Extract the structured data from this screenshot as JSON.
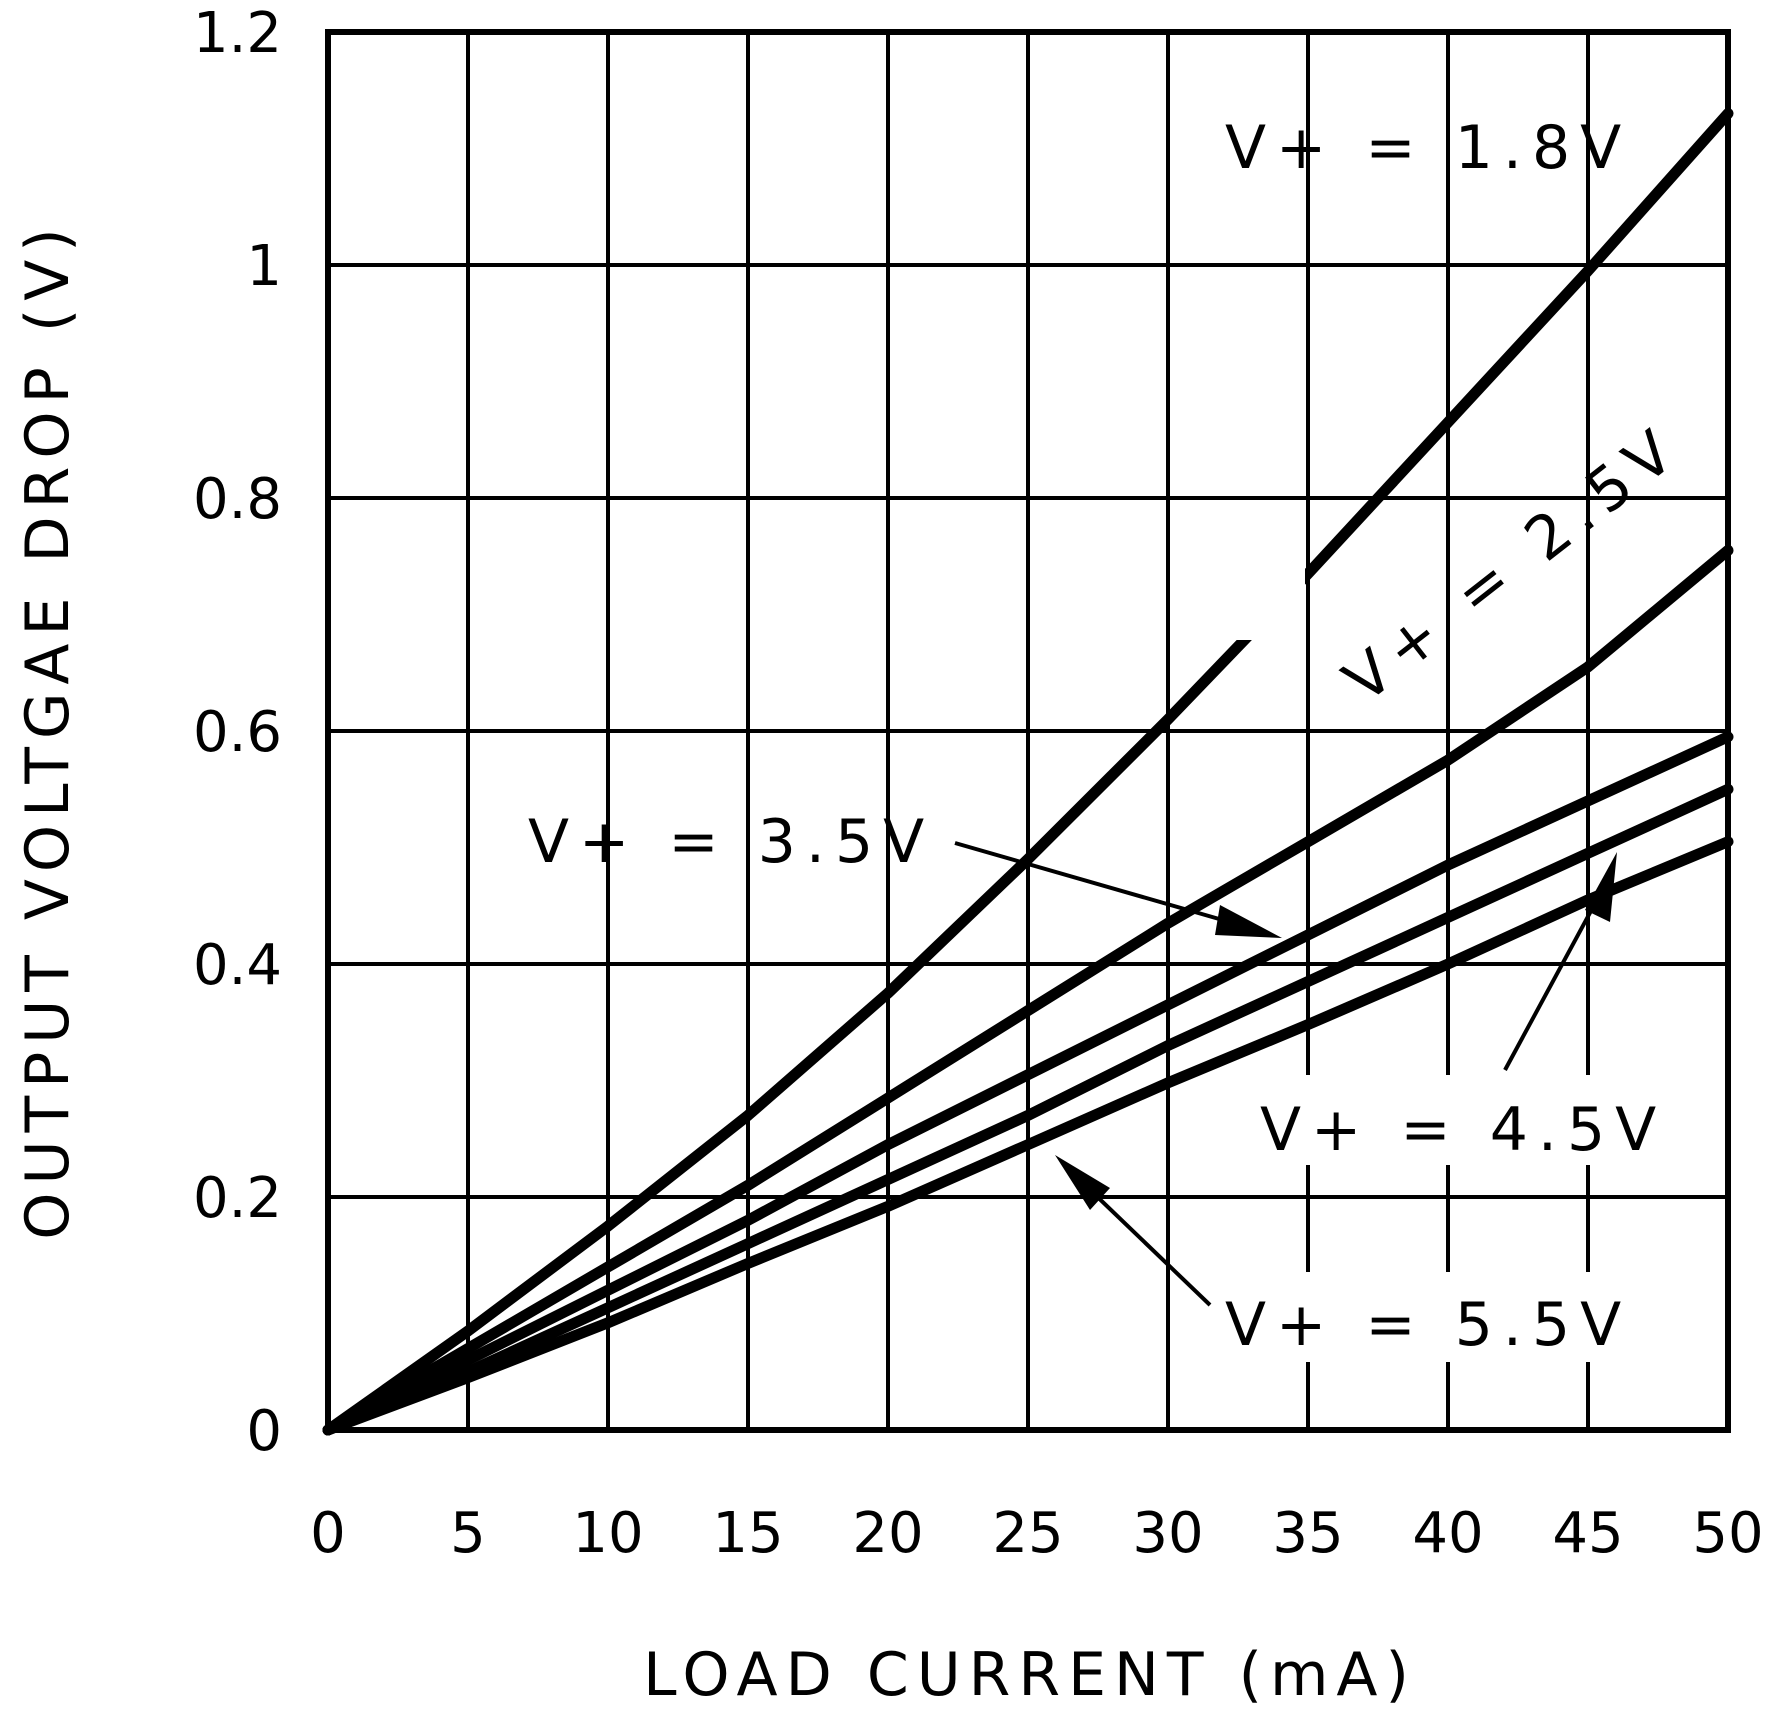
{
  "chart_data": {
    "type": "line",
    "title": "",
    "xlabel": "LOAD CURRENT (mA)",
    "ylabel": "OUTPUT VOLTGAE DROP (V)",
    "xlim": [
      0,
      50
    ],
    "ylim": [
      0,
      1.2
    ],
    "grid": true,
    "x_ticks": [
      "0",
      "5",
      "10",
      "15",
      "20",
      "25",
      "30",
      "35",
      "40",
      "45",
      "50"
    ],
    "y_ticks": [
      "0",
      "0.2",
      "0.4",
      "0.6",
      "0.8",
      "1",
      "1.2"
    ],
    "x": [
      0,
      5,
      10,
      15,
      20,
      25,
      30,
      35,
      40,
      45,
      50
    ],
    "series": [
      {
        "name": "V+ = 1.8V",
        "values": [
          0,
          0.085,
          0.175,
          0.27,
          0.375,
          0.49,
          0.61,
          0.735,
          0.865,
          0.995,
          1.13
        ]
      },
      {
        "name": "V+ = 2.5V",
        "values": [
          0,
          0.07,
          0.14,
          0.21,
          0.285,
          0.36,
          0.435,
          0.505,
          0.575,
          0.655,
          0.755
        ]
      },
      {
        "name": "V+ = 3.5V",
        "values": [
          0,
          0.06,
          0.12,
          0.18,
          0.245,
          0.305,
          0.365,
          0.425,
          0.485,
          0.54,
          0.595
        ]
      },
      {
        "name": "V+ = 4.5V",
        "values": [
          0,
          0.05,
          0.105,
          0.16,
          0.215,
          0.27,
          0.33,
          0.385,
          0.44,
          0.495,
          0.55
        ]
      },
      {
        "name": "V+ = 5.5V",
        "values": [
          0,
          0.045,
          0.092,
          0.143,
          0.192,
          0.245,
          0.298,
          0.348,
          0.4,
          0.455,
          0.505
        ]
      }
    ],
    "annotations": [
      {
        "text": "V+ = 1.8V",
        "series": "V+ = 1.8V"
      },
      {
        "text": "V+ = 2.5V",
        "series": "V+ = 2.5V"
      },
      {
        "text": "V+ = 3.5V",
        "series": "V+ = 3.5V"
      },
      {
        "text": "V+ = 4.5V",
        "series": "V+ = 4.5V"
      },
      {
        "text": "V+ = 5.5V",
        "series": "V+ = 5.5V"
      }
    ]
  }
}
